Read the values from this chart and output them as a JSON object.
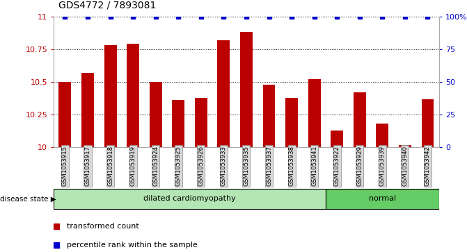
{
  "title": "GDS4772 / 7893081",
  "samples": [
    "GSM1053915",
    "GSM1053917",
    "GSM1053918",
    "GSM1053919",
    "GSM1053924",
    "GSM1053925",
    "GSM1053926",
    "GSM1053933",
    "GSM1053935",
    "GSM1053937",
    "GSM1053938",
    "GSM1053941",
    "GSM1053922",
    "GSM1053929",
    "GSM1053939",
    "GSM1053940",
    "GSM1053942"
  ],
  "bar_values": [
    10.5,
    10.57,
    10.78,
    10.79,
    10.5,
    10.36,
    10.38,
    10.82,
    10.88,
    10.48,
    10.38,
    10.52,
    10.13,
    10.42,
    10.18,
    10.02,
    10.37
  ],
  "percentile_values": [
    100,
    100,
    100,
    100,
    100,
    100,
    100,
    100,
    100,
    100,
    100,
    100,
    100,
    100,
    100,
    100,
    100
  ],
  "disease_groups": [
    {
      "label": "dilated cardiomyopathy",
      "start": 0,
      "end": 11,
      "color": "#b3e6b3"
    },
    {
      "label": "normal",
      "start": 12,
      "end": 16,
      "color": "#66cc66"
    }
  ],
  "bar_color": "#bb0000",
  "percentile_color": "#0000cc",
  "ylim_left": [
    10.0,
    11.0
  ],
  "ylim_right": [
    0,
    100
  ],
  "yticks_left": [
    10.0,
    10.25,
    10.5,
    10.75,
    11.0
  ],
  "ytick_labels_left": [
    "10",
    "10.25",
    "10.5",
    "10.75",
    "11"
  ],
  "yticks_right": [
    0,
    25,
    50,
    75,
    100
  ],
  "ytick_labels_right": [
    "0",
    "25",
    "50",
    "75",
    "100%"
  ],
  "legend_entries": [
    {
      "label": "transformed count",
      "color": "#bb0000"
    },
    {
      "label": "percentile rank within the sample",
      "color": "#0000cc"
    }
  ],
  "disease_state_label": "disease state"
}
